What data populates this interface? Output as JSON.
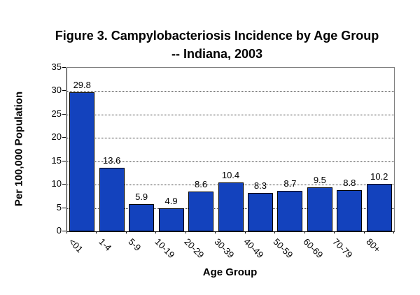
{
  "figure": {
    "title_line1": "Figure 3.  Campylobacteriosis Incidence by Age Group",
    "title_line2": "-- Indiana, 2003"
  },
  "chart_data": {
    "type": "bar",
    "title": "Figure 3. Campylobacteriosis Incidence by Age Group -- Indiana, 2003",
    "categories": [
      "<01",
      "1-4",
      "5-9",
      "10-19",
      "20-29",
      "30-39",
      "40-49",
      "50-59",
      "60-69",
      "70-79",
      "80+"
    ],
    "values": [
      29.8,
      13.6,
      5.9,
      4.9,
      8.6,
      10.4,
      8.3,
      8.7,
      9.5,
      8.8,
      10.2
    ],
    "value_labels": [
      "29.8",
      "13.6",
      "5.9",
      "4.9",
      "8.6",
      "10.4",
      "8.3",
      "8.7",
      "9.5",
      "8.8",
      "10.2"
    ],
    "xlabel": "Age Group",
    "ylabel": "Per 100,000 Population",
    "ylim": [
      0,
      35
    ],
    "yticks": [
      0,
      5,
      10,
      15,
      20,
      25,
      30,
      35
    ],
    "ytick_labels": [
      "0",
      "5",
      "10",
      "15",
      "20",
      "25",
      "30",
      "35"
    ],
    "grid": "horizontal-dotted",
    "legend": "none",
    "data_labels_shown": true
  },
  "colors": {
    "bar_fill": "#1342bd",
    "bar_border": "#000000",
    "gridline": "#3a3a3a",
    "axis": "#000000",
    "frame_light": "#808080",
    "background": "#ffffff",
    "text": "#000000"
  }
}
